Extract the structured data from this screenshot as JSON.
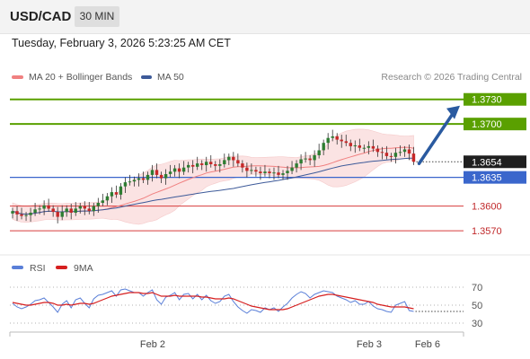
{
  "header": {
    "symbol": "USD/CAD",
    "timeframe": "30 MIN"
  },
  "datetime": "Tuesday, February 3, 2026 5:23:25 AM CET",
  "legend": {
    "bb": "MA 20 + Bollinger Bands",
    "ma50": "MA 50",
    "credit": "Research © 2026 Trading Central"
  },
  "colors": {
    "up_candle": "#2e7d32",
    "down_candle": "#c62828",
    "wick": "#333333",
    "bollinger_fill": "#fbe0e0",
    "ma20": "#f08080",
    "ma50": "#3d5a99",
    "target_line": "#5aa000",
    "pivot_line": "#3a66cc",
    "support_line": "#d73c3c",
    "arrow": "#2a5aa0",
    "rsi": "#5a7fd8",
    "rsi_ma": "#d61f1f"
  },
  "chart_data": [
    {
      "type": "candlestick",
      "title": "USD/CAD",
      "timeframe": "30 MIN",
      "ylim": [
        1.3545,
        1.3745
      ],
      "x_tick_labels": [
        "Feb 2",
        "Feb 3",
        "Feb 6"
      ],
      "close": [
        1.3594,
        1.359,
        1.3588,
        1.3589,
        1.3592,
        1.3596,
        1.3597,
        1.3601,
        1.3597,
        1.3593,
        1.3587,
        1.3593,
        1.3597,
        1.3592,
        1.3597,
        1.36,
        1.3597,
        1.3594,
        1.36,
        1.3604,
        1.3607,
        1.3612,
        1.3617,
        1.3614,
        1.3624,
        1.3629,
        1.363,
        1.3632,
        1.3634,
        1.3632,
        1.3638,
        1.3644,
        1.3638,
        1.3634,
        1.3639,
        1.3642,
        1.3646,
        1.3642,
        1.3647,
        1.365,
        1.3648,
        1.3652,
        1.365,
        1.3654,
        1.3651,
        1.3649,
        1.3651,
        1.3656,
        1.366,
        1.3656,
        1.3652,
        1.3647,
        1.3643,
        1.3644,
        1.3642,
        1.364,
        1.3642,
        1.364,
        1.3641,
        1.3638,
        1.364,
        1.3643,
        1.3647,
        1.3652,
        1.3657,
        1.3658,
        1.3656,
        1.3662,
        1.3668,
        1.3677,
        1.3683,
        1.3685,
        1.3681,
        1.3679,
        1.3677,
        1.3673,
        1.3674,
        1.3671,
        1.3671,
        1.3673,
        1.367,
        1.3666,
        1.3665,
        1.3661,
        1.366,
        1.3665,
        1.3666,
        1.3669,
        1.3664,
        1.3654
      ],
      "horizontal_levels": [
        {
          "value": 1.373,
          "label": "1.3730",
          "kind": "target"
        },
        {
          "value": 1.37,
          "label": "1.3700",
          "kind": "target"
        },
        {
          "value": 1.3635,
          "label": "1.3635",
          "kind": "pivot"
        },
        {
          "value": 1.36,
          "label": "1.3600",
          "kind": "support"
        },
        {
          "value": 1.357,
          "label": "1.3570",
          "kind": "support"
        }
      ],
      "last_price": {
        "value": 1.3654,
        "label": "1.3654"
      },
      "series_labels": [
        "MA 20 + Bollinger Bands",
        "MA 50"
      ]
    },
    {
      "type": "line",
      "indicator": "RSI",
      "series_labels": [
        "RSI",
        "9MA"
      ],
      "y_tick_labels": [
        "70",
        "50",
        "30"
      ],
      "ylim": [
        25,
        80
      ],
      "rsi": [
        52,
        48,
        46,
        48,
        51,
        55,
        56,
        58,
        53,
        48,
        42,
        51,
        55,
        47,
        56,
        58,
        52,
        47,
        57,
        61,
        62,
        64,
        66,
        60,
        67,
        68,
        66,
        64,
        64,
        60,
        64,
        67,
        56,
        51,
        59,
        61,
        64,
        56,
        62,
        63,
        57,
        62,
        56,
        61,
        55,
        52,
        54,
        60,
        62,
        54,
        48,
        44,
        41,
        45,
        44,
        42,
        47,
        45,
        47,
        43,
        48,
        52,
        58,
        62,
        65,
        63,
        58,
        62,
        64,
        66,
        65,
        64,
        60,
        58,
        56,
        53,
        55,
        51,
        51,
        54,
        49,
        46,
        45,
        43,
        42,
        50,
        52,
        54,
        44,
        43
      ],
      "rsi_ma": [
        53,
        52,
        51,
        50,
        50,
        51,
        52,
        53,
        53,
        52,
        50,
        50,
        51,
        50,
        51,
        52,
        52,
        51,
        52,
        54,
        56,
        58,
        60,
        61,
        62,
        63,
        64,
        64,
        64,
        63,
        63,
        64,
        62,
        60,
        60,
        60,
        61,
        60,
        60,
        60,
        60,
        60,
        59,
        59,
        58,
        57,
        57,
        57,
        58,
        57,
        55,
        53,
        51,
        49,
        48,
        47,
        46,
        45,
        45,
        45,
        45,
        46,
        48,
        50,
        52,
        54,
        56,
        58,
        60,
        61,
        62,
        62,
        61,
        60,
        59,
        58,
        57,
        56,
        55,
        54,
        53,
        51,
        50,
        49,
        48,
        48,
        48,
        48,
        47,
        46
      ]
    }
  ]
}
